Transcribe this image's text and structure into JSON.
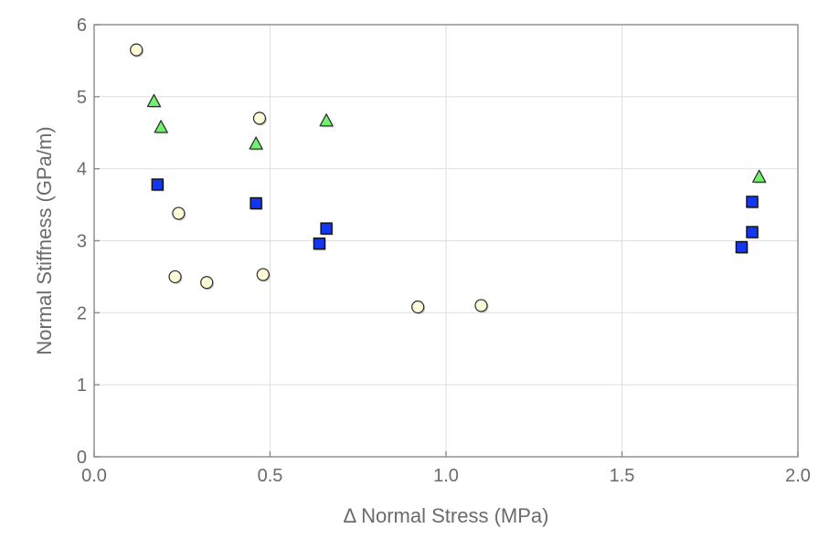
{
  "chart_data": {
    "type": "scatter",
    "title": "",
    "xlabel": "Δ Normal Stress (MPa)",
    "ylabel": "Normal Stiffness (GPa/m)",
    "xlim": [
      0.0,
      2.0
    ],
    "ylim": [
      0,
      6
    ],
    "xticks": [
      "0.0",
      "0.5",
      "1.0",
      "1.5",
      "2.0"
    ],
    "yticks": [
      "0",
      "1",
      "2",
      "3",
      "4",
      "5",
      "6"
    ],
    "grid": true,
    "legend": "none",
    "series": [
      {
        "marker": "circle",
        "color": "#fdfbd8",
        "points": [
          [
            0.12,
            5.65
          ],
          [
            0.24,
            3.38
          ],
          [
            0.23,
            2.5
          ],
          [
            0.32,
            2.42
          ],
          [
            0.47,
            4.7
          ],
          [
            0.48,
            2.53
          ],
          [
            0.92,
            2.08
          ],
          [
            1.1,
            2.1
          ]
        ]
      },
      {
        "marker": "triangle",
        "color": "#6ef36b",
        "points": [
          [
            0.17,
            4.93
          ],
          [
            0.19,
            4.57
          ],
          [
            0.46,
            4.34
          ],
          [
            0.66,
            4.66
          ],
          [
            1.89,
            3.88
          ]
        ]
      },
      {
        "marker": "square",
        "color": "#1336f2",
        "points": [
          [
            0.18,
            3.78
          ],
          [
            0.46,
            3.52
          ],
          [
            0.64,
            2.96
          ],
          [
            0.66,
            3.17
          ],
          [
            1.84,
            2.91
          ],
          [
            1.87,
            3.12
          ],
          [
            1.87,
            3.54
          ]
        ]
      }
    ]
  }
}
